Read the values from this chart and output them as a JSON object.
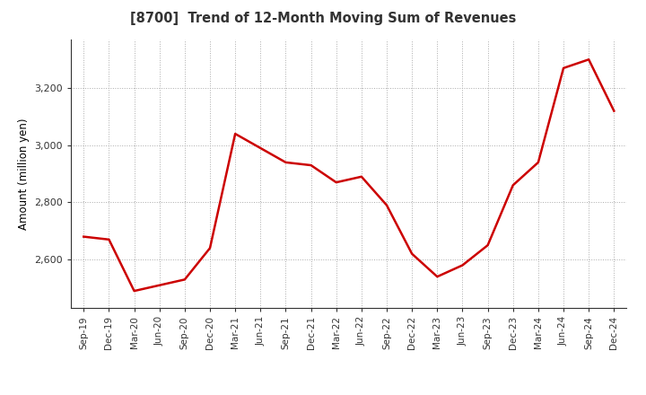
{
  "title": "[8700]  Trend of 12-Month Moving Sum of Revenues",
  "ylabel": "Amount (million yen)",
  "line_color": "#cc0000",
  "line_width": 1.8,
  "background_color": "#ffffff",
  "grid_color": "#aaaaaa",
  "ylim": [
    2430,
    3370
  ],
  "yticks": [
    2600,
    2800,
    3000,
    3200
  ],
  "labels": [
    "Sep-19",
    "Dec-19",
    "Mar-20",
    "Jun-20",
    "Sep-20",
    "Dec-20",
    "Mar-21",
    "Jun-21",
    "Sep-21",
    "Dec-21",
    "Mar-22",
    "Jun-22",
    "Sep-22",
    "Dec-22",
    "Mar-23",
    "Jun-23",
    "Sep-23",
    "Dec-23",
    "Mar-24",
    "Jun-24",
    "Sep-24",
    "Dec-24"
  ],
  "values": [
    2680,
    2670,
    2490,
    2510,
    2530,
    2640,
    3040,
    2990,
    2940,
    2930,
    2870,
    2890,
    2790,
    2620,
    2540,
    2580,
    2650,
    2860,
    2940,
    3270,
    3300,
    3120
  ]
}
